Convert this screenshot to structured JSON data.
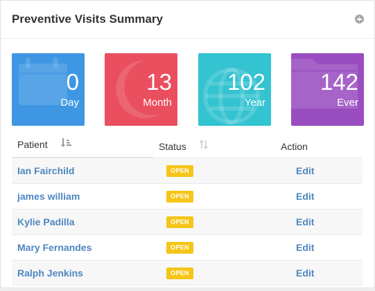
{
  "panel": {
    "title": "Preventive Visits Summary",
    "header_icon": "plus-circle-icon"
  },
  "tiles": [
    {
      "value": "0",
      "label": "Day",
      "color": "#3f97e3",
      "icon": "calendar-icon"
    },
    {
      "value": "13",
      "label": "Month",
      "color": "#ea4f5f",
      "icon": "moon-icon"
    },
    {
      "value": "102",
      "label": "Year",
      "color": "#33c3d1",
      "icon": "globe-icon"
    },
    {
      "value": "142",
      "label": "Ever",
      "color": "#9a4dc0",
      "icon": "folder-icon"
    }
  ],
  "table": {
    "columns": {
      "patient": "Patient",
      "status": "Status",
      "action": "Action"
    },
    "rows": [
      {
        "patient": "Ian Fairchild",
        "status": "OPEN",
        "action": "Edit"
      },
      {
        "patient": "james william",
        "status": "OPEN",
        "action": "Edit"
      },
      {
        "patient": "Kylie Padilla",
        "status": "OPEN",
        "action": "Edit"
      },
      {
        "patient": "Mary Fernandes",
        "status": "OPEN",
        "action": "Edit"
      },
      {
        "patient": "Ralph Jenkins",
        "status": "OPEN",
        "action": "Edit"
      }
    ]
  },
  "colors": {
    "link": "#4d86bf",
    "badge_open": "#f5c518"
  }
}
